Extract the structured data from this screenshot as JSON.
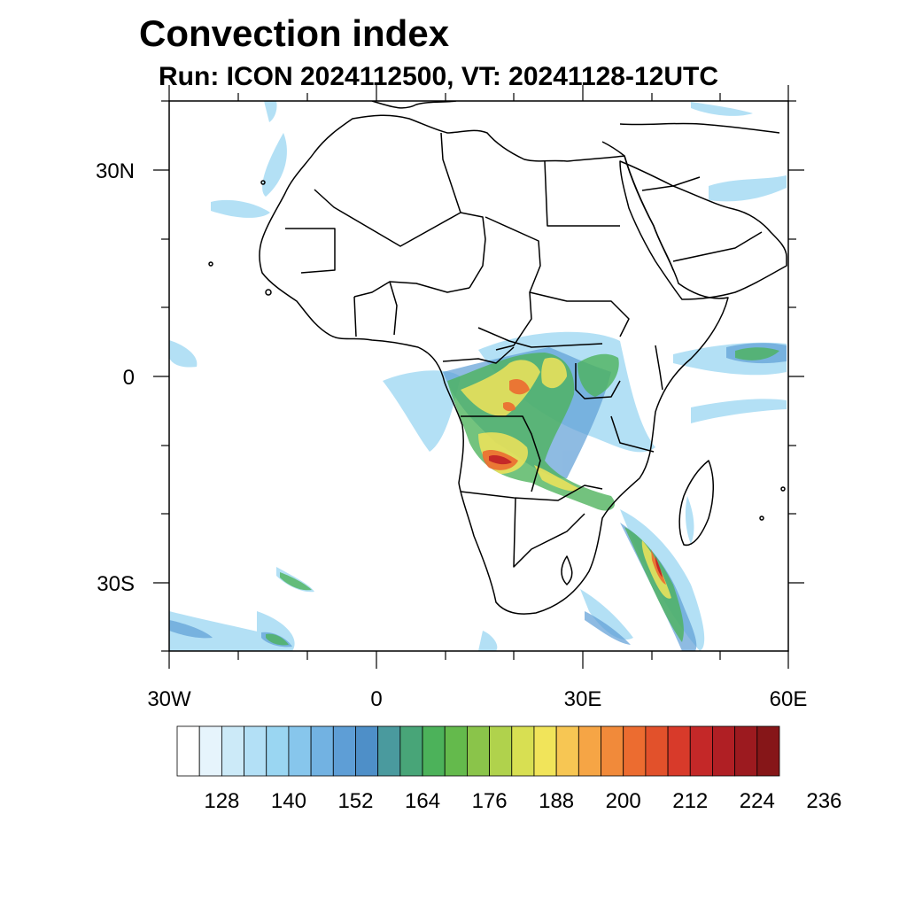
{
  "header": {
    "title": "Convection index",
    "subtitle": "Run: ICON 2024112500,  VT: 20241128-12UTC"
  },
  "map": {
    "lon_range": [
      -30,
      60
    ],
    "lat_range": [
      -40,
      40
    ],
    "lat_labels": [
      "30N",
      "0",
      "30S"
    ],
    "lon_labels": [
      "30W",
      "0",
      "30E",
      "60E"
    ]
  },
  "colorbar": {
    "colors": [
      "#ffffff",
      "#e6f4fc",
      "#cceaf8",
      "#b3e0f6",
      "#9ad6f2",
      "#87c6ec",
      "#72b2e2",
      "#5e9ed6",
      "#4e8fc8",
      "#4a9a9e",
      "#48a578",
      "#4cb25a",
      "#64ba4c",
      "#8ac44a",
      "#b0d24c",
      "#d8df52",
      "#f1e45a",
      "#f7c653",
      "#f6a545",
      "#f18a3a",
      "#ec6c30",
      "#e2512b",
      "#d83a2a",
      "#c42828",
      "#b01f24",
      "#9c1a1f",
      "#861618"
    ],
    "labels": [
      "128",
      "140",
      "152",
      "164",
      "176",
      "188",
      "200",
      "212",
      "224",
      "236"
    ]
  },
  "colors": {
    "coast": "#000000",
    "frame": "#000000"
  }
}
